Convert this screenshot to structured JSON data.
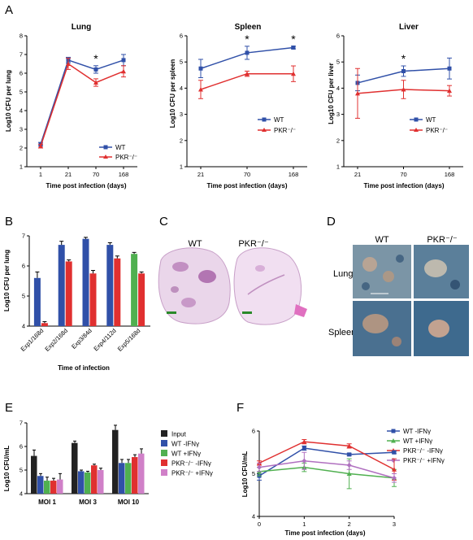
{
  "panels": {
    "A": "A",
    "B": "B",
    "C": "C",
    "D": "D",
    "E": "E",
    "F": "F"
  },
  "panel_a": {
    "xlabel": "Time post infection (days)",
    "lung": {
      "title": "Lung",
      "ylabel": "Log10 CFU per lung"
    },
    "spleen": {
      "title": "Spleen",
      "ylabel": "Log10 CFU per spleen"
    },
    "liver": {
      "title": "Liver",
      "ylabel": "Log10 CFU per liver"
    },
    "legend": {
      "wt": "WT",
      "pkr": "PKR⁻/⁻"
    }
  },
  "panel_c": {
    "wt_label": "WT",
    "pkr_label": "PKR⁻/⁻"
  },
  "panel_d": {
    "wt_label": "WT",
    "pkr_label": "PKR⁻/⁻",
    "row1": "Lung",
    "row2": "Spleen"
  },
  "chart_data": [
    {
      "type": "line",
      "title": "Lung",
      "xlabel": "Time post infection (days)",
      "ylabel": "Log10 CFU per lung",
      "categories": [
        "1",
        "21",
        "70",
        "168"
      ],
      "ylim": [
        1,
        8
      ],
      "yticks": [
        1,
        2,
        3,
        4,
        5,
        6,
        7,
        8
      ],
      "series": [
        {
          "name": "WT",
          "color": "#3050a8",
          "marker": "square",
          "values": [
            2.2,
            6.7,
            6.2,
            6.7
          ],
          "err": [
            0.1,
            0.15,
            0.2,
            0.3
          ]
        },
        {
          "name": "PKR⁻/⁻",
          "color": "#e03030",
          "marker": "triangle",
          "values": [
            2.1,
            6.5,
            5.5,
            6.1
          ],
          "err": [
            0.1,
            0.3,
            0.2,
            0.3
          ]
        }
      ],
      "annotations": [
        {
          "x": "70",
          "text": "*"
        }
      ]
    },
    {
      "type": "line",
      "title": "Spleen",
      "xlabel": "Time post infection (days)",
      "ylabel": "Log10 CFU per spleen",
      "categories": [
        "21",
        "70",
        "168"
      ],
      "ylim": [
        1,
        6
      ],
      "yticks": [
        1,
        2,
        3,
        4,
        5,
        6
      ],
      "series": [
        {
          "name": "WT",
          "color": "#3050a8",
          "marker": "square",
          "values": [
            4.75,
            5.35,
            5.55
          ],
          "err": [
            0.35,
            0.25,
            0.05
          ]
        },
        {
          "name": "PKR⁻/⁻",
          "color": "#e03030",
          "marker": "triangle",
          "values": [
            3.95,
            4.55,
            4.55
          ],
          "err": [
            0.35,
            0.1,
            0.3
          ]
        }
      ],
      "annotations": [
        {
          "x": "70",
          "text": "*"
        },
        {
          "x": "168",
          "text": "*"
        }
      ]
    },
    {
      "type": "line",
      "title": "Liver",
      "xlabel": "Time post infection (days)",
      "ylabel": "Log10 CFU per liver",
      "categories": [
        "21",
        "70",
        "168"
      ],
      "ylim": [
        1,
        6
      ],
      "yticks": [
        1,
        2,
        3,
        4,
        5,
        6
      ],
      "series": [
        {
          "name": "WT",
          "color": "#3050a8",
          "marker": "square",
          "values": [
            4.2,
            4.65,
            4.75
          ],
          "err": [
            0.3,
            0.2,
            0.4
          ]
        },
        {
          "name": "PKR⁻/⁻",
          "color": "#e03030",
          "marker": "triangle",
          "values": [
            3.8,
            3.95,
            3.9
          ],
          "err": [
            0.95,
            0.35,
            0.2
          ]
        }
      ],
      "annotations": [
        {
          "x": "70",
          "text": "*"
        }
      ]
    },
    {
      "type": "bar",
      "xlabel": "Time of infection",
      "ylabel": "Log10 CFU per lung",
      "categories": [
        "Exp1/168d",
        "Exp2/168d",
        "Exp3/84d",
        "Exp4/112d",
        "Exp5/168d"
      ],
      "ylim": [
        4,
        7
      ],
      "yticks": [
        4,
        5,
        6,
        7
      ],
      "groups": [
        {
          "category": "Exp1/168d",
          "bars": [
            {
              "value": 5.6,
              "err": 0.2,
              "color": "#3050a8"
            },
            {
              "value": 4.1,
              "err": 0.05,
              "color": "#e03030"
            }
          ]
        },
        {
          "category": "Exp2/168d",
          "bars": [
            {
              "value": 6.7,
              "err": 0.12,
              "color": "#3050a8"
            },
            {
              "value": 6.15,
              "err": 0.05,
              "color": "#e03030"
            }
          ]
        },
        {
          "category": "Exp3/84d",
          "bars": [
            {
              "value": 6.9,
              "err": 0.05,
              "color": "#3050a8"
            },
            {
              "value": 5.75,
              "err": 0.1,
              "color": "#e03030"
            }
          ]
        },
        {
          "category": "Exp4/112d",
          "bars": [
            {
              "value": 6.7,
              "err": 0.07,
              "color": "#3050a8"
            },
            {
              "value": 6.25,
              "err": 0.08,
              "color": "#e03030"
            }
          ]
        },
        {
          "category": "Exp5/168d",
          "bars": [
            {
              "value": 6.4,
              "err": 0.05,
              "color": "#50b050"
            },
            {
              "value": 5.75,
              "err": 0.05,
              "color": "#e03030"
            }
          ]
        }
      ]
    },
    {
      "type": "bar",
      "ylabel": "Log10 CFU/mL",
      "categories": [
        "MOI 1",
        "MOI 3",
        "MOI 10"
      ],
      "ylim": [
        4,
        7
      ],
      "yticks": [
        4,
        5,
        6,
        7
      ],
      "series": [
        {
          "name": "Input",
          "color": "#222222",
          "values": [
            5.6,
            6.15,
            6.7
          ],
          "err": [
            0.25,
            0.08,
            0.2
          ]
        },
        {
          "name": "WT -IFNγ",
          "color": "#3050a8",
          "values": [
            4.75,
            4.95,
            5.3
          ],
          "err": [
            0.1,
            0.05,
            0.15
          ]
        },
        {
          "name": "WT +IFNγ",
          "color": "#50b050",
          "values": [
            4.55,
            4.9,
            5.3
          ],
          "err": [
            0.15,
            0.05,
            0.15
          ]
        },
        {
          "name": "PKR⁻/⁻ -IFNγ",
          "color": "#e03030",
          "values": [
            4.55,
            5.2,
            5.55
          ],
          "err": [
            0.1,
            0.05,
            0.1
          ]
        },
        {
          "name": "PKR⁻/⁻ +IFNγ",
          "color": "#d080c8",
          "values": [
            4.6,
            5.0,
            5.7
          ],
          "err": [
            0.25,
            0.08,
            0.2
          ]
        }
      ]
    },
    {
      "type": "line",
      "xlabel": "Time post infection (days)",
      "ylabel": "Log10 CFU/mL",
      "x": [
        0,
        1,
        2,
        3
      ],
      "ylim": [
        4,
        6
      ],
      "yticks": [
        4,
        5,
        6
      ],
      "series": [
        {
          "name": "WT -IFNγ",
          "color": "#3050a8",
          "marker": "square",
          "values": [
            4.95,
            5.6,
            5.45,
            5.5
          ],
          "err": [
            0.1,
            0.05,
            0.03,
            0.03
          ]
        },
        {
          "name": "WT +IFNγ",
          "color": "#50b050",
          "marker": "triangle",
          "values": [
            5.05,
            5.15,
            5.0,
            4.9
          ],
          "err": [
            0.1,
            0.1,
            0.35,
            0.2
          ]
        },
        {
          "name": "PKR⁻/⁻ -IFNγ",
          "color": "#e03030",
          "marker": "triangle",
          "values": [
            5.25,
            5.75,
            5.65,
            5.1
          ],
          "err": [
            0.05,
            0.05,
            0.05,
            0.25
          ]
        },
        {
          "name": "PKR⁻/⁻ +IFNγ",
          "color": "#b070c0",
          "marker": "diamond",
          "values": [
            5.15,
            5.3,
            5.2,
            4.9
          ],
          "err": [
            0.1,
            0.2,
            0.1,
            0.1
          ]
        }
      ]
    }
  ]
}
